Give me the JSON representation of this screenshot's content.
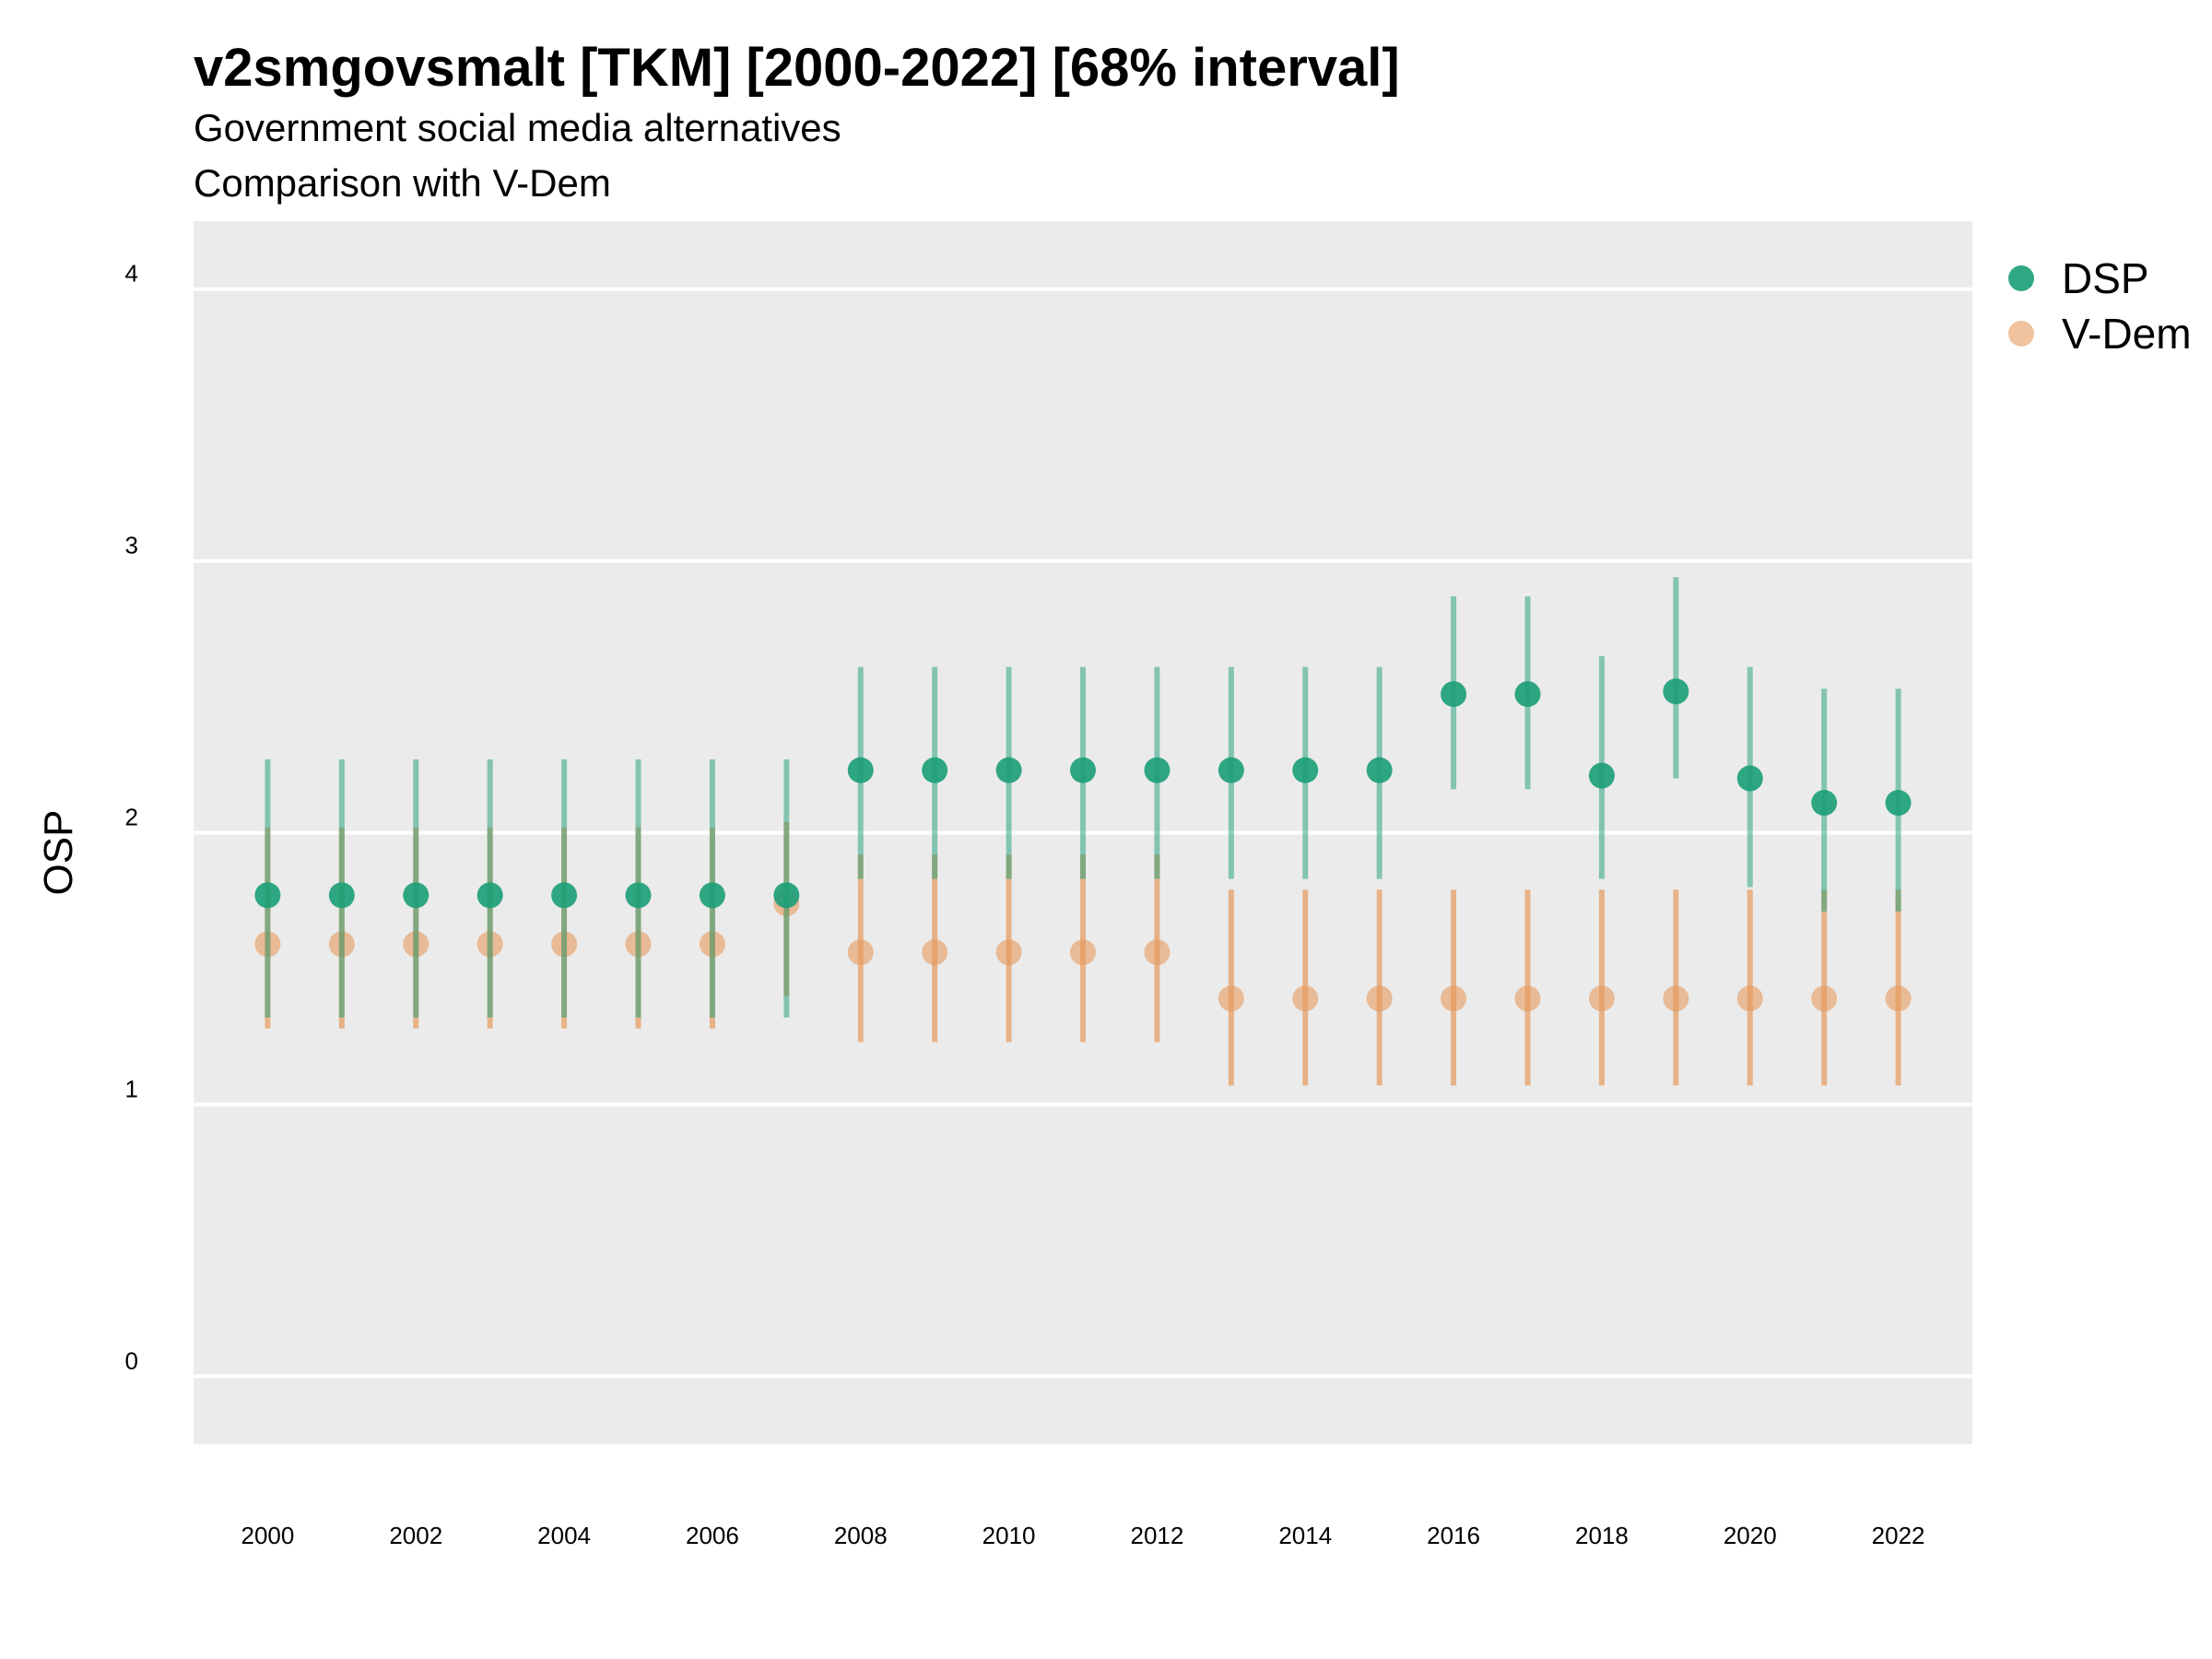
{
  "chart_data": {
    "type": "scatter",
    "title": "v2smgovsmalt [TKM] [2000-2022] [68% interval]",
    "subtitle_lines": [
      "Government social media alternatives",
      "Comparison with V-Dem"
    ],
    "xlabel": "",
    "ylabel": "OSP",
    "xlim": [
      1999,
      2023
    ],
    "ylim": [
      -0.25,
      4.25
    ],
    "y_ticks": [
      0,
      1,
      2,
      3,
      4
    ],
    "x_ticks": [
      2000,
      2002,
      2004,
      2006,
      2008,
      2010,
      2012,
      2014,
      2016,
      2018,
      2020,
      2022
    ],
    "grid": true,
    "legend_position": "right",
    "x": [
      2000,
      2001,
      2002,
      2003,
      2004,
      2005,
      2006,
      2007,
      2008,
      2009,
      2010,
      2011,
      2012,
      2013,
      2014,
      2015,
      2016,
      2017,
      2018,
      2019,
      2020,
      2021,
      2022
    ],
    "series": [
      {
        "name": "V-Dem",
        "color": "#e69a5c",
        "values": [
          1.59,
          1.59,
          1.59,
          1.59,
          1.59,
          1.59,
          1.59,
          1.74,
          1.56,
          1.56,
          1.56,
          1.56,
          1.56,
          1.39,
          1.39,
          1.39,
          1.39,
          1.39,
          1.39,
          1.39,
          1.39,
          1.39,
          1.39
        ],
        "lower": [
          1.28,
          1.28,
          1.28,
          1.28,
          1.28,
          1.28,
          1.28,
          1.4,
          1.23,
          1.23,
          1.23,
          1.23,
          1.23,
          1.07,
          1.07,
          1.07,
          1.07,
          1.07,
          1.07,
          1.07,
          1.07,
          1.07,
          1.07
        ],
        "upper": [
          2.02,
          2.02,
          2.02,
          2.02,
          2.02,
          2.02,
          2.02,
          2.04,
          1.92,
          1.92,
          1.92,
          1.92,
          1.92,
          1.79,
          1.79,
          1.79,
          1.79,
          1.79,
          1.79,
          1.79,
          1.79,
          1.79,
          1.79
        ]
      },
      {
        "name": "DSP",
        "color": "#1b9e77",
        "values": [
          1.77,
          1.77,
          1.77,
          1.77,
          1.77,
          1.77,
          1.77,
          1.77,
          2.23,
          2.23,
          2.23,
          2.23,
          2.23,
          2.23,
          2.23,
          2.23,
          2.51,
          2.51,
          2.21,
          2.52,
          2.2,
          2.11,
          2.11
        ],
        "lower": [
          1.32,
          1.32,
          1.32,
          1.32,
          1.32,
          1.32,
          1.32,
          1.32,
          1.83,
          1.83,
          1.83,
          1.83,
          1.83,
          1.83,
          1.83,
          1.83,
          2.16,
          2.16,
          1.83,
          2.2,
          1.8,
          1.71,
          1.71
        ],
        "upper": [
          2.27,
          2.27,
          2.27,
          2.27,
          2.27,
          2.27,
          2.27,
          2.27,
          2.61,
          2.61,
          2.61,
          2.61,
          2.61,
          2.61,
          2.61,
          2.61,
          2.87,
          2.87,
          2.65,
          2.94,
          2.61,
          2.53,
          2.53
        ]
      }
    ],
    "legend": [
      {
        "name": "DSP",
        "color": "#1b9e77"
      },
      {
        "name": "V-Dem",
        "color": "#e69a5c"
      }
    ]
  }
}
